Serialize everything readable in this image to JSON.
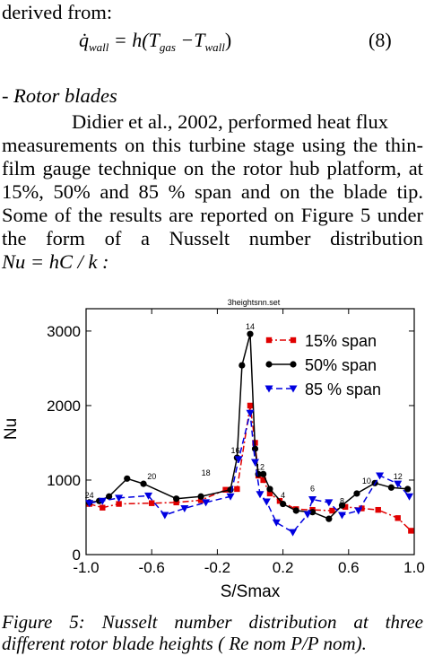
{
  "text": {
    "derived_from": "derived from:",
    "eq8_q": "q̇",
    "eq8_q_sub": "wall",
    "eq8_eq": "= h(T",
    "eq8_tgas_sub": "gas",
    "eq8_minus": "−T",
    "eq8_twall_sub": "wall",
    "eq8_close": ")",
    "eq8_number": "(8)",
    "section_heading": "- Rotor blades",
    "para_line1": "Didier et al., 2002, performed heat flux",
    "para_line2_words": [
      "measurements",
      "on",
      "this",
      "turbine",
      "stage",
      "using",
      "the",
      "thin-"
    ],
    "para_line3_words": [
      "film",
      "gauge",
      "technique",
      "on",
      "the",
      "rotor",
      "hub",
      "platform,",
      "at"
    ],
    "para_line4_words": [
      "15%,",
      "50%",
      "and",
      "85",
      "%",
      "span",
      "and",
      "on",
      "the",
      "blade",
      "tip."
    ],
    "para_line5_words": [
      "Some",
      "of",
      "the",
      "results",
      "are",
      "reported",
      "on",
      "Figure",
      "5",
      "under"
    ],
    "para_line6_words": [
      "the",
      "form",
      "of",
      "a",
      "Nusselt",
      "number",
      "distribution"
    ],
    "para_line7": "Nu = hC / k :",
    "caption_line1_words": [
      "Figure",
      "5:",
      "Nusselt",
      "number",
      "distribution",
      "at",
      "three"
    ],
    "caption_line2": "different rotor blade heights ( Re nom P/P nom)."
  },
  "chart_data": {
    "type": "line",
    "title": "3heightsnn.set",
    "xlabel": "S/Smax",
    "ylabel": "Nu",
    "xlim": [
      -1.0,
      1.0
    ],
    "ylim": [
      0,
      3300
    ],
    "xticks": [
      "-1.0",
      "-0.6",
      "-0.2",
      "0.2",
      "0.6",
      "1.0"
    ],
    "xtick_values": [
      -1.0,
      -0.6,
      -0.2,
      0.2,
      0.6,
      1.0
    ],
    "yticks": [
      "0",
      "1000",
      "2000",
      "3000"
    ],
    "ytick_values": [
      0,
      1000,
      2000,
      3000
    ],
    "legend_position": "top-right",
    "series": [
      {
        "name": "15% span",
        "color": "#e00000",
        "marker": "square",
        "dash": "dash-dot",
        "points": [
          [
            -0.98,
            680
          ],
          [
            -0.9,
            630
          ],
          [
            -0.8,
            680
          ],
          [
            -0.6,
            690
          ],
          [
            -0.45,
            700
          ],
          [
            -0.3,
            730
          ],
          [
            -0.15,
            870
          ],
          [
            -0.08,
            880
          ],
          [
            0.0,
            2000
          ],
          [
            0.03,
            1500
          ],
          [
            0.05,
            1060
          ],
          [
            0.08,
            1000
          ],
          [
            0.12,
            820
          ],
          [
            0.18,
            720
          ],
          [
            0.28,
            610
          ],
          [
            0.38,
            600
          ],
          [
            0.5,
            590
          ],
          [
            0.58,
            640
          ],
          [
            0.68,
            620
          ],
          [
            0.78,
            600
          ],
          [
            0.9,
            490
          ],
          [
            0.98,
            320
          ]
        ]
      },
      {
        "name": "50% span",
        "color": "#000000",
        "marker": "circle",
        "dash": "solid",
        "points": [
          [
            -0.98,
            700
          ],
          [
            -0.92,
            720
          ],
          [
            -0.86,
            780
          ],
          [
            -0.75,
            1020
          ],
          [
            -0.65,
            950
          ],
          [
            -0.45,
            750
          ],
          [
            -0.3,
            780
          ],
          [
            -0.12,
            870
          ],
          [
            -0.08,
            1300
          ],
          [
            -0.05,
            2540
          ],
          [
            0.0,
            2960
          ],
          [
            0.03,
            1420
          ],
          [
            0.05,
            1080
          ],
          [
            0.08,
            1080
          ],
          [
            0.12,
            880
          ],
          [
            0.2,
            680
          ],
          [
            0.28,
            590
          ],
          [
            0.38,
            570
          ],
          [
            0.48,
            480
          ],
          [
            0.56,
            660
          ],
          [
            0.65,
            820
          ],
          [
            0.76,
            960
          ],
          [
            0.86,
            900
          ],
          [
            0.96,
            880
          ]
        ]
      },
      {
        "name": "85 % span",
        "color": "#0000e0",
        "marker": "triangle-down",
        "dash": "dashed",
        "points": [
          [
            -0.98,
            690
          ],
          [
            -0.9,
            720
          ],
          [
            -0.8,
            760
          ],
          [
            -0.62,
            790
          ],
          [
            -0.52,
            530
          ],
          [
            -0.4,
            620
          ],
          [
            -0.27,
            700
          ],
          [
            -0.12,
            780
          ],
          [
            -0.07,
            1280
          ],
          [
            0.0,
            1900
          ],
          [
            0.03,
            1240
          ],
          [
            0.06,
            810
          ],
          [
            0.1,
            710
          ],
          [
            0.16,
            430
          ],
          [
            0.26,
            300
          ],
          [
            0.35,
            540
          ],
          [
            0.38,
            740
          ],
          [
            0.48,
            700
          ],
          [
            0.56,
            530
          ],
          [
            0.66,
            590
          ],
          [
            0.79,
            1060
          ],
          [
            0.9,
            950
          ],
          [
            0.97,
            780
          ]
        ]
      }
    ],
    "point_labels": [
      {
        "text": "24",
        "x": -0.98,
        "y": 700
      },
      {
        "text": "20",
        "x": -0.6,
        "y": 950
      },
      {
        "text": "18",
        "x": -0.27,
        "y": 1000
      },
      {
        "text": "16",
        "x": -0.09,
        "y": 1300
      },
      {
        "text": "14",
        "x": 0.0,
        "y": 2960
      },
      {
        "text": "12",
        "x": 0.06,
        "y": 1080
      },
      {
        "text": "4",
        "x": 0.2,
        "y": 700
      },
      {
        "text": "6",
        "x": 0.38,
        "y": 790
      },
      {
        "text": "8",
        "x": 0.56,
        "y": 620
      },
      {
        "text": "10",
        "x": 0.71,
        "y": 890
      },
      {
        "text": "12",
        "x": 0.9,
        "y": 950
      }
    ]
  }
}
